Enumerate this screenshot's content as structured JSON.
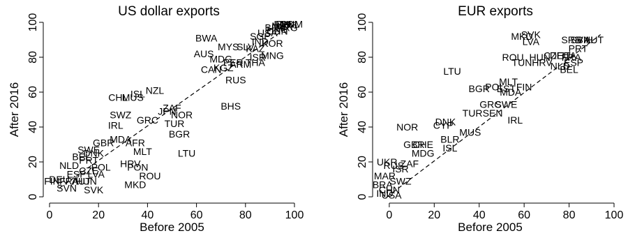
{
  "chart_data": [
    {
      "type": "scatter",
      "title": "US dollar exports",
      "xlabel": "Before 2005",
      "ylabel": "After 2016",
      "xlim": [
        0,
        100
      ],
      "ylim": [
        0,
        100
      ],
      "xticks": [
        0,
        20,
        40,
        60,
        80,
        100
      ],
      "yticks": [
        0,
        20,
        40,
        60,
        80,
        100
      ],
      "point_kind": "text-labels",
      "trend_line": {
        "style": "dashed",
        "x": [
          4,
          100
        ],
        "y": [
          5,
          100
        ]
      },
      "points": [
        {
          "label": "BWA",
          "x": 64,
          "y": 91
        },
        {
          "label": "MYS",
          "x": 73,
          "y": 86
        },
        {
          "label": "SLV",
          "x": 80,
          "y": 86
        },
        {
          "label": "AUS",
          "x": 63,
          "y": 82
        },
        {
          "label": "NZL",
          "x": 43,
          "y": 61
        },
        {
          "label": "ISL",
          "x": 36,
          "y": 59
        },
        {
          "label": "CHL",
          "x": 28,
          "y": 57
        },
        {
          "label": "MUS",
          "x": 34,
          "y": 57
        },
        {
          "label": "BHS",
          "x": 74,
          "y": 52
        },
        {
          "label": "ZAF",
          "x": 50,
          "y": 51
        },
        {
          "label": "JPN",
          "x": 48,
          "y": 49
        },
        {
          "label": "NOR",
          "x": 54,
          "y": 47
        },
        {
          "label": "SWZ",
          "x": 29,
          "y": 47
        },
        {
          "label": "GRC",
          "x": 40,
          "y": 44
        },
        {
          "label": "TUR",
          "x": 51,
          "y": 42
        },
        {
          "label": "IRL",
          "x": 27,
          "y": 41
        },
        {
          "label": "BGR",
          "x": 53,
          "y": 36
        },
        {
          "label": "LTU",
          "x": 56,
          "y": 25
        },
        {
          "label": "MLT",
          "x": 38,
          "y": 26
        },
        {
          "label": "HRV",
          "x": 33,
          "y": 19
        },
        {
          "label": "PON",
          "x": 36,
          "y": 17
        },
        {
          "label": "ROU",
          "x": 41,
          "y": 12
        },
        {
          "label": "MKD",
          "x": 35,
          "y": 7
        },
        {
          "label": "SVK",
          "x": 18,
          "y": 4
        },
        {
          "label": "SVN",
          "x": 7,
          "y": 5
        },
        {
          "label": "HUN",
          "x": 15,
          "y": 9
        },
        {
          "label": "FIN",
          "x": 1,
          "y": 9
        },
        {
          "label": "GBR",
          "x": 22,
          "y": 31
        },
        {
          "label": "MDA",
          "x": 29,
          "y": 33
        },
        {
          "label": "SWE",
          "x": 16,
          "y": 27
        },
        {
          "label": "NLD",
          "x": 8,
          "y": 18
        },
        {
          "label": "AFR",
          "x": 35,
          "y": 31
        },
        {
          "label": "BEL",
          "x": 13,
          "y": 23
        },
        {
          "label": "PRT",
          "x": 16,
          "y": 21
        },
        {
          "label": "DNK",
          "x": 18,
          "y": 25
        },
        {
          "label": "ESP",
          "x": 11,
          "y": 13
        },
        {
          "label": "FRA",
          "x": 8,
          "y": 9
        },
        {
          "label": "DEU",
          "x": 4,
          "y": 10
        },
        {
          "label": "AUT",
          "x": 13,
          "y": 9
        },
        {
          "label": "CZE",
          "x": 16,
          "y": 15
        },
        {
          "label": "LVA",
          "x": 19,
          "y": 13
        },
        {
          "label": "POL",
          "x": 21,
          "y": 17
        },
        {
          "label": "CAN",
          "x": 66,
          "y": 73
        },
        {
          "label": "KGZ",
          "x": 71,
          "y": 74
        },
        {
          "label": "MDG",
          "x": 70,
          "y": 79
        },
        {
          "label": "PER",
          "x": 75,
          "y": 77
        },
        {
          "label": "ARM",
          "x": 78,
          "y": 76
        },
        {
          "label": "THA",
          "x": 84,
          "y": 77
        },
        {
          "label": "ISR",
          "x": 85,
          "y": 80
        },
        {
          "label": "RUS",
          "x": 76,
          "y": 67
        },
        {
          "label": "MNG",
          "x": 91,
          "y": 81
        },
        {
          "label": "KAZ",
          "x": 84,
          "y": 85
        },
        {
          "label": "IND",
          "x": 86,
          "y": 89
        },
        {
          "label": "SGP",
          "x": 86,
          "y": 92
        },
        {
          "label": "USA",
          "x": 89,
          "y": 94
        },
        {
          "label": "KOR",
          "x": 91,
          "y": 88
        },
        {
          "label": "CHN",
          "x": 93,
          "y": 95
        },
        {
          "label": "BRA",
          "x": 92,
          "y": 97
        },
        {
          "label": "MEX",
          "x": 95,
          "y": 98
        },
        {
          "label": "PHL",
          "x": 96,
          "y": 99
        },
        {
          "label": "COL",
          "x": 98,
          "y": 99
        },
        {
          "label": "ARG",
          "x": 97,
          "y": 97
        },
        {
          "label": "IDN",
          "x": 95,
          "y": 99
        },
        {
          "label": "HKG",
          "x": 93,
          "y": 96
        },
        {
          "label": "VNM",
          "x": 99,
          "y": 99
        }
      ]
    },
    {
      "type": "scatter",
      "title": "EUR exports",
      "xlabel": "Before 2005",
      "ylabel": "After 2016",
      "xlim": [
        -4,
        100
      ],
      "ylim": [
        0,
        100
      ],
      "xticks": [
        0,
        20,
        40,
        60,
        80,
        100
      ],
      "yticks": [
        0,
        20,
        40,
        60,
        80,
        100
      ],
      "point_kind": "text-labels",
      "trend_line": {
        "style": "dashed",
        "x": [
          -1,
          94
        ],
        "y": [
          0,
          93
        ]
      },
      "points": [
        {
          "label": "MKD",
          "x": 59,
          "y": 92
        },
        {
          "label": "SVK",
          "x": 63,
          "y": 93
        },
        {
          "label": "LVA",
          "x": 63,
          "y": 89
        },
        {
          "label": "SRB",
          "x": 81,
          "y": 90
        },
        {
          "label": "BIH",
          "x": 87,
          "y": 90
        },
        {
          "label": "SVN",
          "x": 85,
          "y": 90
        },
        {
          "label": "AUT",
          "x": 91,
          "y": 90
        },
        {
          "label": "PRT",
          "x": 84,
          "y": 85
        },
        {
          "label": "ROU",
          "x": 55,
          "y": 80
        },
        {
          "label": "HUN",
          "x": 67,
          "y": 80
        },
        {
          "label": "CZE",
          "x": 73,
          "y": 81
        },
        {
          "label": "DEU",
          "x": 76,
          "y": 81
        },
        {
          "label": "ITA",
          "x": 80,
          "y": 81
        },
        {
          "label": "FRA",
          "x": 81,
          "y": 80
        },
        {
          "label": "TUN",
          "x": 59,
          "y": 77
        },
        {
          "label": "HRV",
          "x": 68,
          "y": 77
        },
        {
          "label": "ESP",
          "x": 82,
          "y": 77
        },
        {
          "label": "NLD",
          "x": 76,
          "y": 75
        },
        {
          "label": "BEL",
          "x": 80,
          "y": 73
        },
        {
          "label": "LTU",
          "x": 28,
          "y": 72
        },
        {
          "label": "MLT",
          "x": 53,
          "y": 66
        },
        {
          "label": "FIN",
          "x": 60,
          "y": 63
        },
        {
          "label": "BGR",
          "x": 40,
          "y": 62
        },
        {
          "label": "POL",
          "x": 47,
          "y": 63
        },
        {
          "label": "EST",
          "x": 52,
          "y": 62
        },
        {
          "label": "MDA",
          "x": 54,
          "y": 60
        },
        {
          "label": "GRC",
          "x": 45,
          "y": 53
        },
        {
          "label": "SWE",
          "x": 52,
          "y": 53
        },
        {
          "label": "TUR",
          "x": 37,
          "y": 48
        },
        {
          "label": "SEN",
          "x": 46,
          "y": 48
        },
        {
          "label": "IRL",
          "x": 56,
          "y": 44
        },
        {
          "label": "DNK",
          "x": 25,
          "y": 43
        },
        {
          "label": "CYP",
          "x": 24,
          "y": 41
        },
        {
          "label": "NOR",
          "x": 8,
          "y": 40
        },
        {
          "label": "MUS",
          "x": 36,
          "y": 37
        },
        {
          "label": "BLR",
          "x": 27,
          "y": 33
        },
        {
          "label": "GBR",
          "x": 11,
          "y": 30
        },
        {
          "label": "CHE",
          "x": 15,
          "y": 30
        },
        {
          "label": "ISL",
          "x": 27,
          "y": 28
        },
        {
          "label": "MDG",
          "x": 15,
          "y": 25
        },
        {
          "label": "UKR",
          "x": -1,
          "y": 20
        },
        {
          "label": "RUS",
          "x": 2,
          "y": 18
        },
        {
          "label": "ISR",
          "x": 5,
          "y": 16
        },
        {
          "label": "ZAF",
          "x": 9,
          "y": 19
        },
        {
          "label": "MAR",
          "x": -2,
          "y": 12
        },
        {
          "label": "SWZ",
          "x": 5,
          "y": 9
        },
        {
          "label": "BRA",
          "x": -3,
          "y": 7
        },
        {
          "label": "CHN",
          "x": 0,
          "y": 4
        },
        {
          "label": "IND",
          "x": -2,
          "y": 2
        },
        {
          "label": "USA",
          "x": 1,
          "y": 1
        }
      ]
    }
  ]
}
